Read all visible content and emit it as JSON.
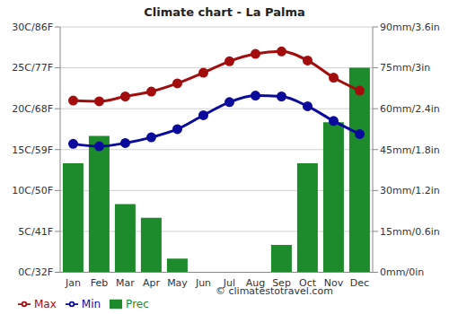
{
  "chart_data": {
    "type": "bar",
    "title": "Climate chart - La Palma",
    "categories": [
      "Jan",
      "Feb",
      "Mar",
      "Apr",
      "May",
      "Jun",
      "Jul",
      "Aug",
      "Sep",
      "Oct",
      "Nov",
      "Dec"
    ],
    "series": [
      {
        "name": "Prec",
        "type": "bar",
        "axis": "y2",
        "color": "#1d8a2c",
        "values": [
          40,
          50,
          25,
          20,
          5,
          0,
          0,
          0,
          10,
          40,
          55,
          75
        ]
      },
      {
        "name": "Min",
        "type": "line",
        "marker": "circle",
        "color": "#0a0a9c",
        "values": [
          15.7,
          15.4,
          15.8,
          16.5,
          17.5,
          19.2,
          20.8,
          21.6,
          21.5,
          20.3,
          18.5,
          16.9
        ]
      },
      {
        "name": "Max",
        "type": "line",
        "marker": "circle",
        "color": "#a30d0d",
        "values": [
          21.0,
          20.9,
          21.5,
          22.1,
          23.1,
          24.4,
          25.8,
          26.7,
          27.0,
          25.9,
          23.8,
          22.2
        ]
      }
    ],
    "ylim": [
      0,
      30
    ],
    "yticks": [
      {
        "value": 0,
        "label": "0C/32F"
      },
      {
        "value": 5,
        "label": "5C/41F"
      },
      {
        "value": 10,
        "label": "10C/50F"
      },
      {
        "value": 15,
        "label": "15C/59F"
      },
      {
        "value": 20,
        "label": "20C/68F"
      },
      {
        "value": 25,
        "label": "25C/77F"
      },
      {
        "value": 30,
        "label": "30C/86F"
      }
    ],
    "y2lim": [
      0,
      90
    ],
    "y2ticks": [
      {
        "value": 0,
        "label": "0mm/0in"
      },
      {
        "value": 15,
        "label": "15mm/0.6in"
      },
      {
        "value": 30,
        "label": "30mm/1.2in"
      },
      {
        "value": 45,
        "label": "45mm/1.8in"
      },
      {
        "value": 60,
        "label": "60mm/2.4in"
      },
      {
        "value": 75,
        "label": "75mm/3in"
      },
      {
        "value": 90,
        "label": "90mm/3.6in"
      }
    ],
    "grid": true,
    "legend": "bottom",
    "annotations": [
      "© climatestotravel.com"
    ]
  }
}
